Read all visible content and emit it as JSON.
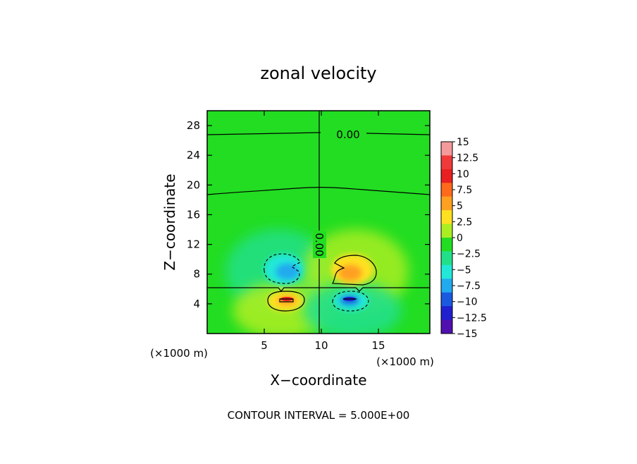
{
  "chart_data": {
    "type": "heatmap",
    "title": "zonal velocity",
    "xlabel": "X−coordinate",
    "ylabel": "Z−coordinate",
    "x_unit_left": "(×1000 m)",
    "x_unit_right": "(×1000 m)",
    "xlim": [
      0,
      19.5
    ],
    "ylim": [
      0,
      30
    ],
    "x_ticks": [
      5,
      10,
      15
    ],
    "y_ticks": [
      4,
      8,
      12,
      16,
      20,
      24,
      28
    ],
    "colorbar": {
      "levels": [
        15,
        12.5,
        10,
        7.5,
        5,
        2.5,
        0,
        -2.5,
        -5,
        -7.5,
        -10,
        -12.5,
        -15
      ],
      "labels": [
        "15",
        "12.5",
        "10",
        "7.5",
        "5",
        "2.5",
        "0",
        "−2.5",
        "−5",
        "−7.5",
        "−10",
        "−12.5",
        "−15"
      ],
      "colors": [
        "#f59a9a",
        "#f03a3a",
        "#e82020",
        "#ff6a1a",
        "#ffa020",
        "#ffe020",
        "#aaee22",
        "#22dd22",
        "#22e08a",
        "#22e8d8",
        "#22aaee",
        "#1a5ae0",
        "#2020d0",
        "#5010b0"
      ]
    },
    "contour_labels": [
      "0.00",
      "0.00"
    ],
    "footer": "CONTOUR INTERVAL = 5.000E+00"
  }
}
